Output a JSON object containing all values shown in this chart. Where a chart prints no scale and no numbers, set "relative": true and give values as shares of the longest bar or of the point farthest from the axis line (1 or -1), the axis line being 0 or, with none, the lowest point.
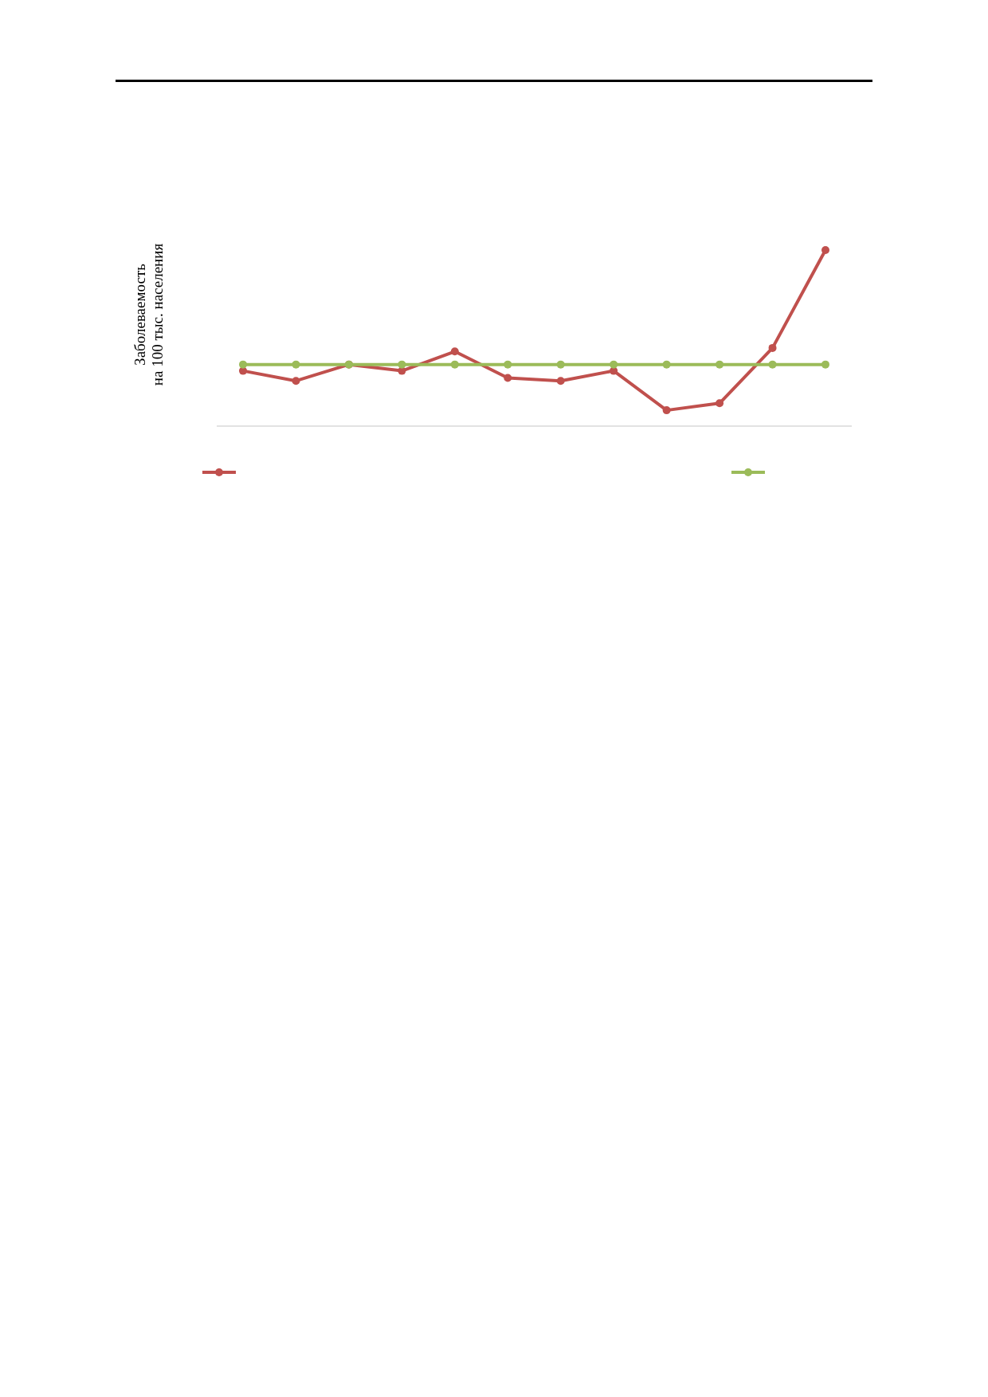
{
  "chart_data": {
    "type": "line",
    "relative": true,
    "ylabel": "Заболеваемость\nна 100 тыс. населения",
    "categories": [
      null,
      null,
      null,
      null,
      null,
      null,
      null,
      null,
      null,
      null,
      null,
      null
    ],
    "marker": "circle",
    "line_style": "solid",
    "grid": false,
    "series": [
      {
        "color": "#c0504d",
        "values": [
          0.314,
          0.257,
          0.35,
          0.314,
          0.424,
          0.274,
          0.257,
          0.314,
          0.09,
          0.13,
          0.444,
          1
        ]
      },
      {
        "color": "#9bbb59",
        "values": [
          0.35,
          0.35,
          0.35,
          0.35,
          0.35,
          0.35,
          0.35,
          0.35,
          0.35,
          0.35,
          0.35,
          0.35
        ]
      }
    ]
  }
}
